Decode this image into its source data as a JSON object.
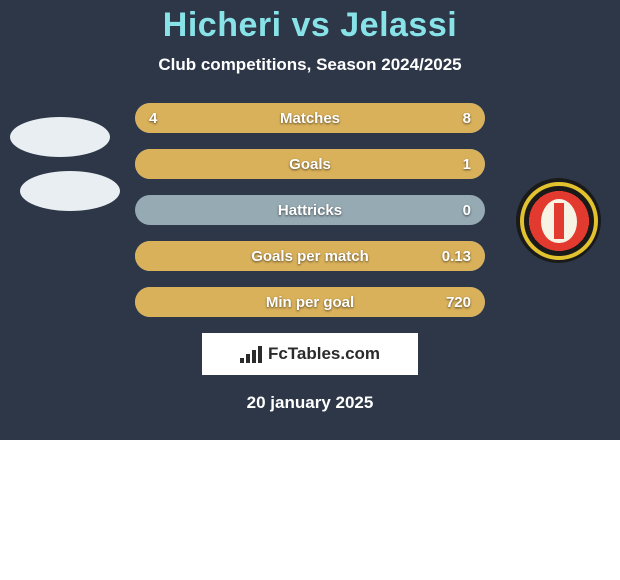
{
  "title": "Hicheri vs Jelassi",
  "subtitle": "Club competitions, Season 2024/2025",
  "date": "20 january 2025",
  "brand": "FcTables.com",
  "card_bg": "#2d3748",
  "title_color": "#88e3e8",
  "text_color": "#ffffff",
  "row_style": {
    "height": 30,
    "radius": 16,
    "track_color": "#96aab3",
    "fill_color": "#d9b15b",
    "fontsize": 15
  },
  "rows": [
    {
      "label": "Matches",
      "left": "4",
      "right": "8",
      "left_pct": 33.3,
      "right_pct": 66.7,
      "left_fill": true,
      "right_fill": true
    },
    {
      "label": "Goals",
      "left": "",
      "right": "1",
      "left_pct": 0,
      "right_pct": 100,
      "left_fill": false,
      "right_fill": true
    },
    {
      "label": "Hattricks",
      "left": "",
      "right": "0",
      "left_pct": 0,
      "right_pct": 0,
      "left_fill": false,
      "right_fill": false
    },
    {
      "label": "Goals per match",
      "left": "",
      "right": "0.13",
      "left_pct": 0,
      "right_pct": 100,
      "left_fill": false,
      "right_fill": true
    },
    {
      "label": "Min per goal",
      "left": "",
      "right": "720",
      "left_pct": 0,
      "right_pct": 100,
      "left_fill": false,
      "right_fill": true
    }
  ],
  "avatars": {
    "placeholder_bg": "#e9eef2"
  },
  "club_badge": {
    "outer_bg": "#1a1a1a",
    "ring_color": "#e2c22f",
    "field_color": "#e23a2f",
    "shield_bg": "#f6f3e4"
  },
  "brand_icon_bars": [
    5,
    9,
    13,
    17
  ]
}
